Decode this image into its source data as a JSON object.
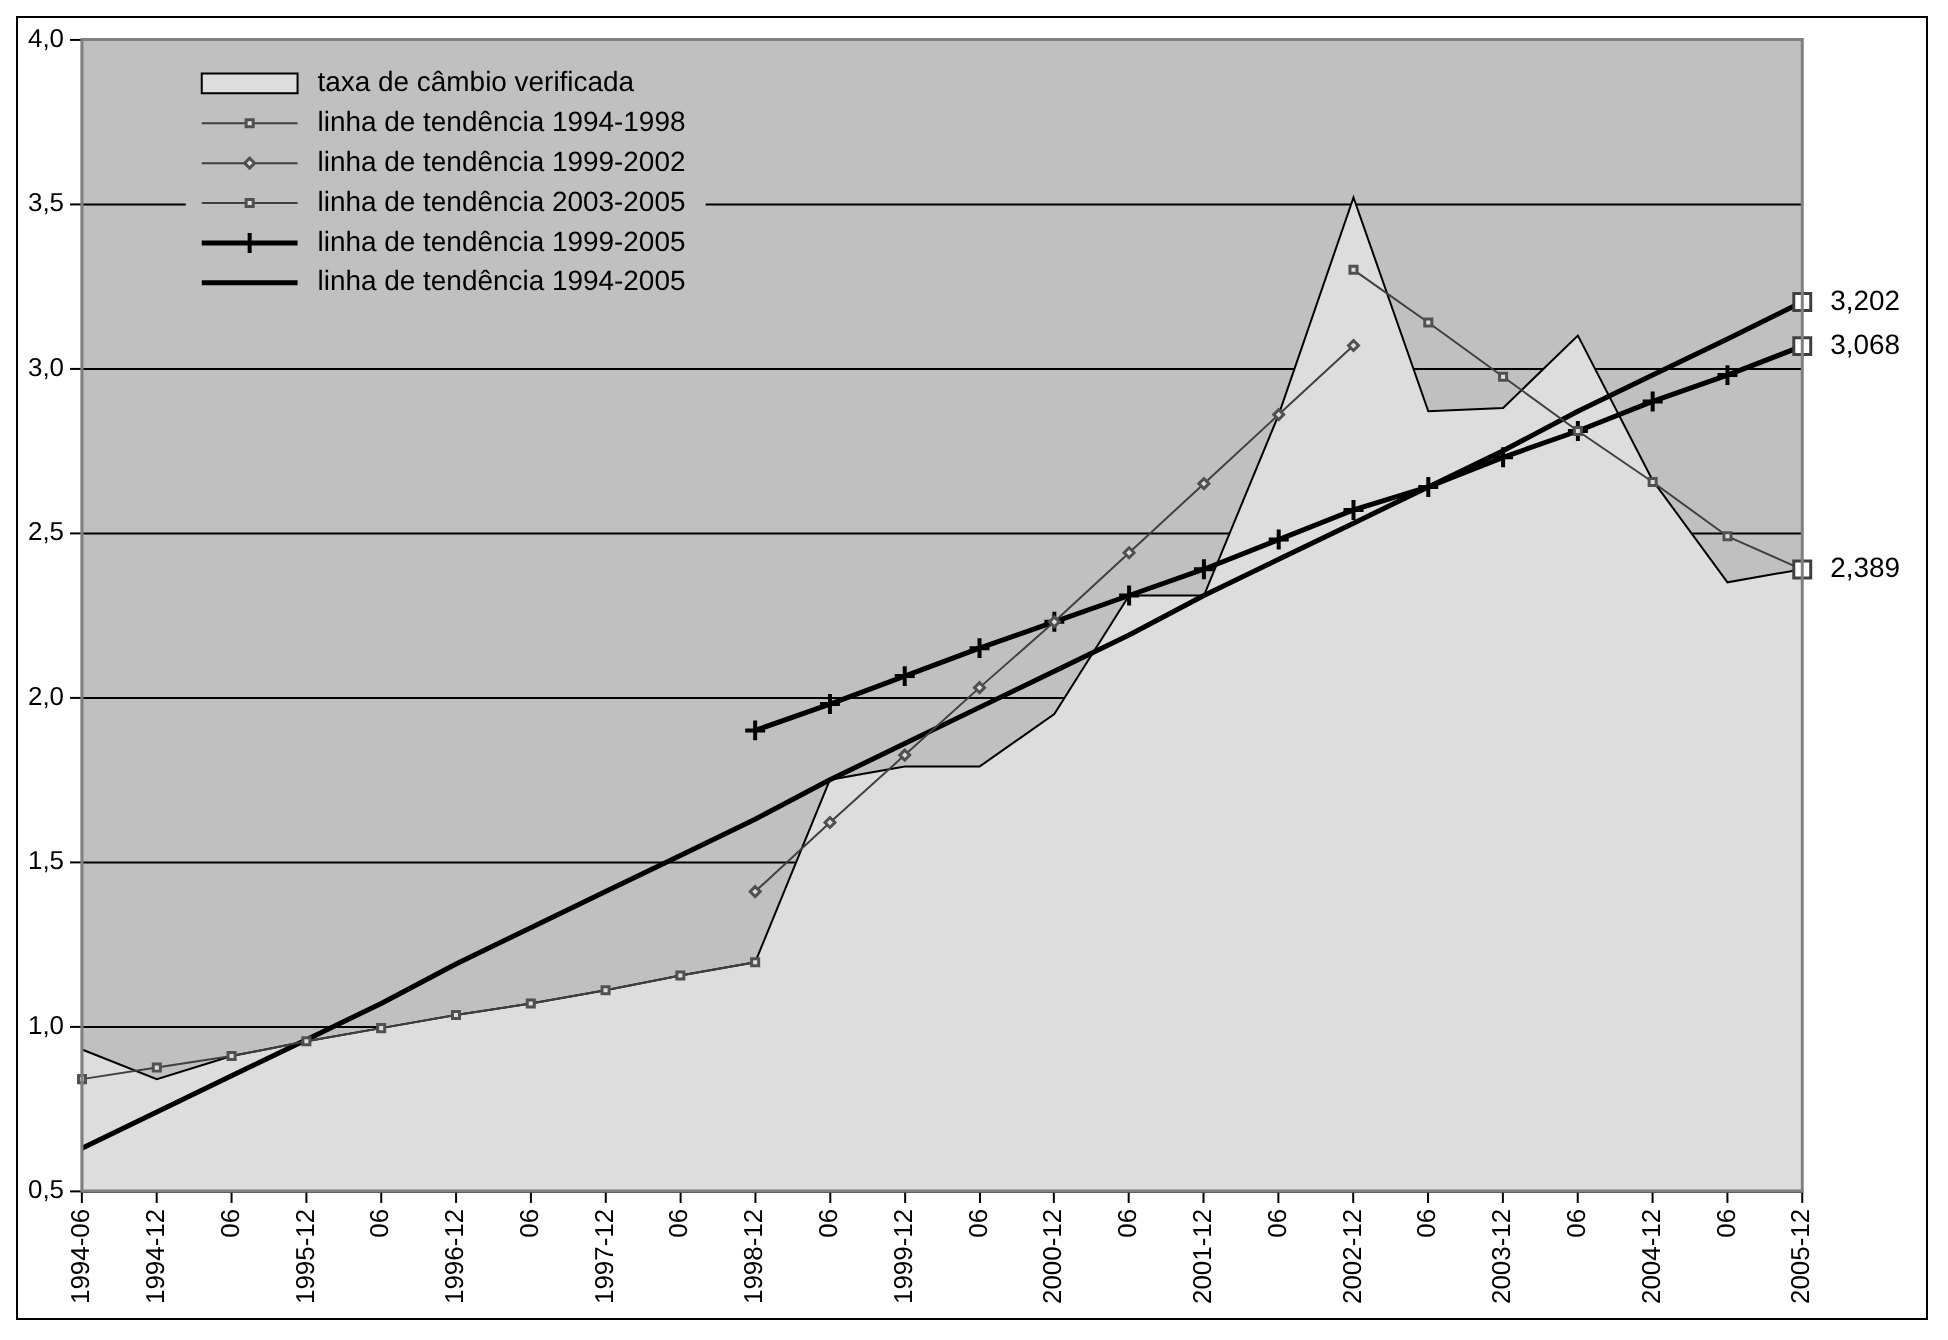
{
  "chart_data": {
    "type": "line",
    "categories": [
      "1994-06",
      "1994-12",
      "06",
      "1995-12",
      "06",
      "1996-12",
      "06",
      "1997-12",
      "06",
      "1998-12",
      "06",
      "1999-12",
      "06",
      "2000-12",
      "06",
      "2001-12",
      "06",
      "2002-12",
      "06",
      "2003-12",
      "06",
      "2004-12",
      "06",
      "2005-12"
    ],
    "series": [
      {
        "name": "taxa de câmbio verificada",
        "type": "area",
        "color": "#dddddd",
        "values": [
          0.93,
          0.84,
          0.91,
          0.955,
          0.995,
          1.035,
          1.07,
          1.11,
          1.155,
          1.195,
          1.75,
          1.79,
          1.79,
          1.95,
          2.31,
          2.31,
          2.86,
          3.52,
          2.87,
          2.88,
          3.1,
          2.66,
          2.35,
          2.39
        ]
      },
      {
        "name": "linha de tendência 1994-1998",
        "color": "#404040",
        "marker": "square",
        "values": [
          0.84,
          0.875,
          0.91,
          0.955,
          0.995,
          1.035,
          1.07,
          1.11,
          1.155,
          1.195,
          null,
          null,
          null,
          null,
          null,
          null,
          null,
          null,
          null,
          null,
          null,
          null,
          null,
          null
        ]
      },
      {
        "name": "linha de tendência 1999-2002",
        "color": "#404040",
        "marker": "diamond",
        "values": [
          null,
          null,
          null,
          null,
          null,
          null,
          null,
          null,
          null,
          1.41,
          1.62,
          1.825,
          2.03,
          2.23,
          2.44,
          2.65,
          2.86,
          3.07,
          null,
          null,
          null,
          null,
          null,
          null
        ]
      },
      {
        "name": "linha de tendência 2003-2005",
        "color": "#404040",
        "marker": "square",
        "values": [
          null,
          null,
          null,
          null,
          null,
          null,
          null,
          null,
          null,
          null,
          null,
          null,
          null,
          null,
          null,
          null,
          null,
          3.3,
          3.14,
          2.975,
          2.81,
          2.655,
          2.49,
          2.389
        ]
      },
      {
        "name": "linha de tendência 1999-2005",
        "color": "#000000",
        "marker": "cross",
        "values": [
          null,
          null,
          null,
          null,
          null,
          null,
          null,
          null,
          null,
          1.9,
          1.98,
          2.065,
          2.15,
          2.23,
          2.31,
          2.39,
          2.48,
          2.57,
          2.64,
          2.73,
          2.81,
          2.9,
          2.98,
          3.068
        ]
      },
      {
        "name": "linha de tendência 1994-2005",
        "color": "#000000",
        "marker": "none",
        "values": [
          0.63,
          0.74,
          0.85,
          0.96,
          1.07,
          1.19,
          1.3,
          1.41,
          1.52,
          1.63,
          1.75,
          1.86,
          1.97,
          2.08,
          2.19,
          2.31,
          2.42,
          2.53,
          2.64,
          2.75,
          2.87,
          2.98,
          3.09,
          3.202
        ]
      }
    ],
    "ylim": [
      0.5,
      4.0
    ],
    "yticks": [
      {
        "value": 0.5,
        "label": "0,5"
      },
      {
        "value": 1.0,
        "label": "1,0"
      },
      {
        "value": 1.5,
        "label": "1,5"
      },
      {
        "value": 2.0,
        "label": "2,0"
      },
      {
        "value": 2.5,
        "label": "2,5"
      },
      {
        "value": 3.0,
        "label": "3,0"
      },
      {
        "value": 3.5,
        "label": "3,5"
      },
      {
        "value": 4.0,
        "label": "4,0"
      }
    ],
    "grid": "y",
    "legend": "top left",
    "annotations": [
      {
        "text": "3,202",
        "x": "2005-12",
        "y": 3.202
      },
      {
        "text": "3,068",
        "x": "2005-12",
        "y": 3.068
      },
      {
        "text": "2,389",
        "x": "2005-12",
        "y": 2.389
      }
    ]
  }
}
